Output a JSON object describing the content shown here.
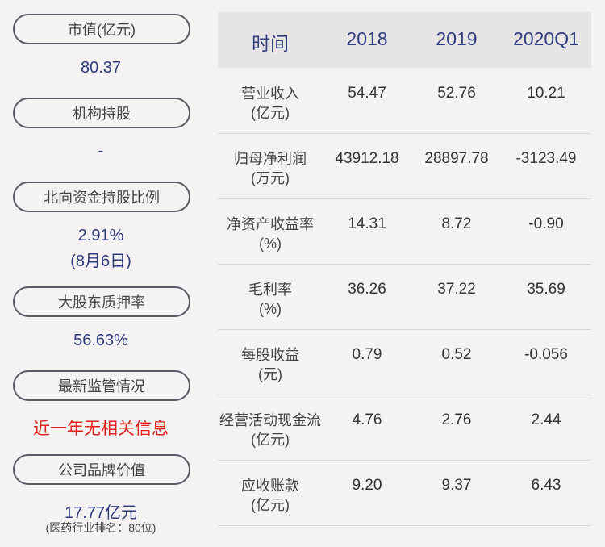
{
  "summary": [
    {
      "label": "市值(亿元)",
      "value": "80.37"
    },
    {
      "label": "机构持股",
      "value": "-"
    },
    {
      "label": "北向资金持股比例",
      "value": "2.91%",
      "note": "(8月6日)"
    },
    {
      "label": "大股东质押率",
      "value": "56.63%"
    },
    {
      "label": "最新监管情况",
      "value": "近一年无相关信息"
    },
    {
      "label": "公司品牌价值",
      "value": "17.77亿元",
      "note": "(医药行业排名：80位)"
    }
  ],
  "table": {
    "header": [
      "时间",
      "2018",
      "2019",
      "2020Q1"
    ],
    "rows": [
      {
        "label": "营业收入",
        "unit": "(亿元)",
        "values": [
          "54.47",
          "52.76",
          "10.21"
        ]
      },
      {
        "label": "归母净利润",
        "unit": "(万元)",
        "values": [
          "43912.18",
          "28897.78",
          "-3123.49"
        ]
      },
      {
        "label": "净资产收益率",
        "unit": "(%)",
        "values": [
          "14.31",
          "8.72",
          "-0.90"
        ]
      },
      {
        "label": "毛利率",
        "unit": "(%)",
        "values": [
          "36.26",
          "37.22",
          "35.69"
        ]
      },
      {
        "label": "每股收益",
        "unit": "(元)",
        "values": [
          "0.79",
          "0.52",
          "-0.056"
        ]
      },
      {
        "label": "经营活动现金流",
        "unit": "(亿元)",
        "values": [
          "4.76",
          "2.76",
          "2.44"
        ]
      },
      {
        "label": "应收账款",
        "unit": "(亿元)",
        "values": [
          "9.20",
          "9.37",
          "6.43"
        ]
      }
    ]
  }
}
